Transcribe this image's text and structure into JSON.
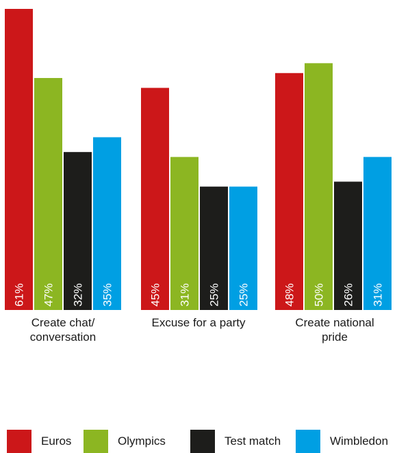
{
  "chart_data": {
    "type": "bar",
    "categories": [
      "Create chat/ conversation",
      "Excuse for a party",
      "Create national pride"
    ],
    "category_lines": [
      [
        "Create chat/",
        "conversation"
      ],
      [
        "Excuse for a party"
      ],
      [
        "Create national",
        "pride"
      ]
    ],
    "series": [
      {
        "name": "Euros",
        "color": "#cc1719",
        "values": [
          61,
          45,
          48
        ]
      },
      {
        "name": "Olympics",
        "color": "#8cb622",
        "values": [
          47,
          31,
          50
        ]
      },
      {
        "name": "Test match",
        "color": "#1d1d1b",
        "values": [
          32,
          25,
          26
        ]
      },
      {
        "name": "Wimbledon",
        "color": "#009fe3",
        "values": [
          35,
          25,
          31
        ]
      }
    ],
    "value_suffix": "%",
    "ylim": [
      0,
      61
    ],
    "grid": false,
    "legend_position": "bottom"
  }
}
